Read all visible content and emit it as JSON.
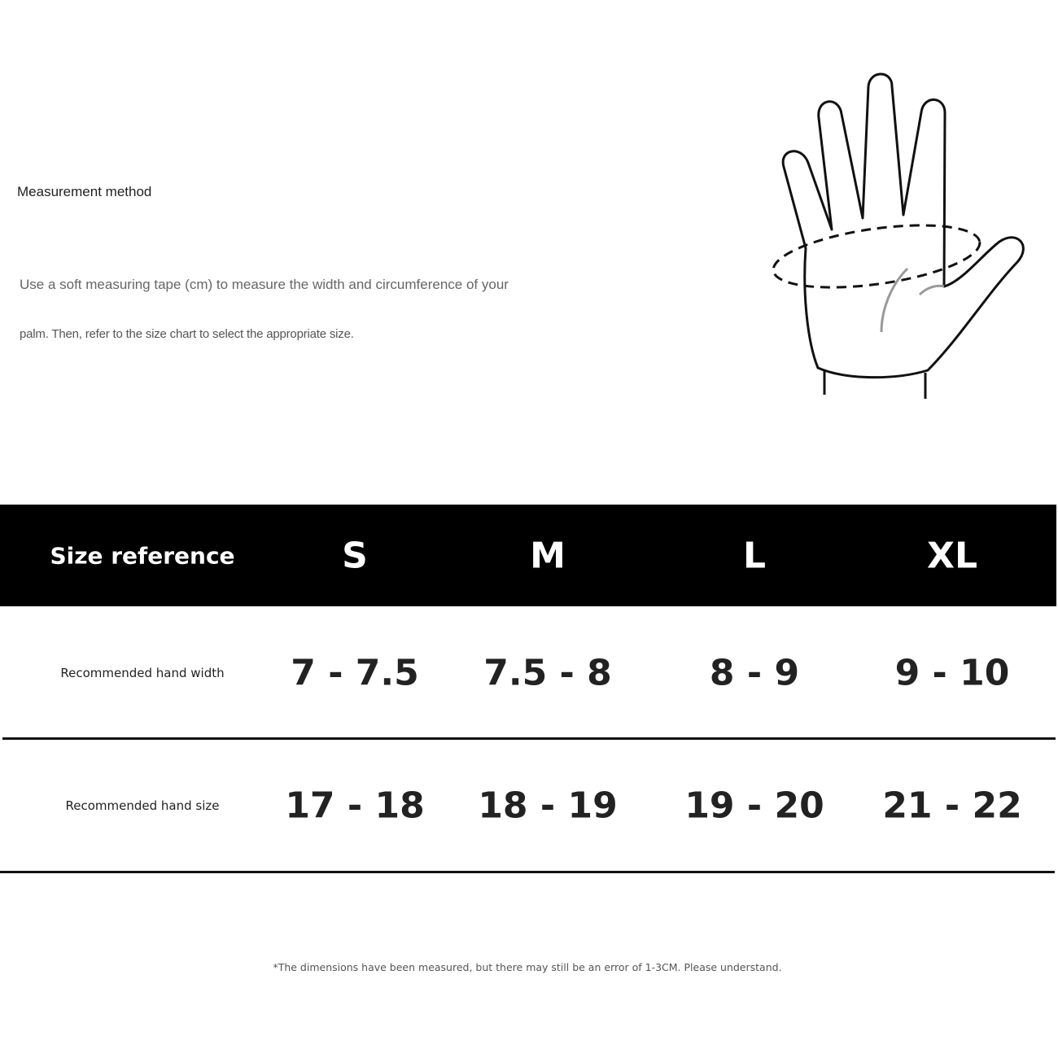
{
  "measurement": {
    "title": "Measurement method",
    "description_line1": "Use a soft measuring tape (cm) to measure the width and circumference of your",
    "description_line2": "palm. Then, refer to the size chart to select the appropriate size."
  },
  "illustration": {
    "icon": "hand-measurement-icon"
  },
  "size_table": {
    "header_label": "Size reference",
    "sizes": [
      "S",
      "M",
      "L",
      "XL"
    ],
    "rows": [
      {
        "label": "Recommended hand width",
        "values": [
          "7 - 7.5",
          "7.5 - 8",
          "8 - 9",
          "9 - 10"
        ]
      },
      {
        "label": "Recommended hand size",
        "values": [
          "17 - 18",
          "18 - 19",
          "19 - 20",
          "21 - 22"
        ]
      }
    ]
  },
  "note": "*The dimensions have been measured, but there may still be an error of 1-3CM. Please understand.",
  "colors": {
    "header_bg": "#000000",
    "header_text": "#ffffff",
    "text": "#222222"
  }
}
